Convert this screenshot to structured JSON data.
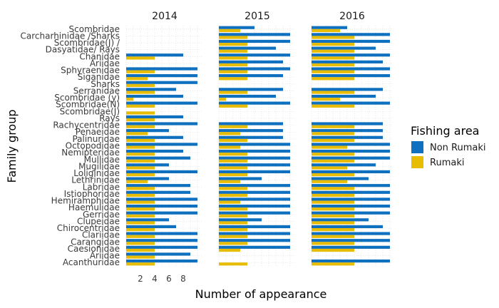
{
  "chart_data": {
    "type": "bar",
    "orientation": "horizontal",
    "facets": [
      "2014",
      "2015",
      "2016"
    ],
    "xlabel": "Number of appearance",
    "ylabel": "Family group",
    "x_ticks": [
      2,
      4,
      6,
      8
    ],
    "xlim": [
      0,
      10
    ],
    "legend_title": "Fishing area",
    "legend_position": "right",
    "grid": true,
    "series": [
      {
        "name": "Non Rumaki",
        "color": "#1070C0"
      },
      {
        "name": "Rumaki",
        "color": "#E8BC00"
      }
    ],
    "categories": [
      "Scombridae",
      "Carcharhinidae /Sharks",
      "Scombridae(J) /",
      "Dasyatidae/ Rays",
      "Chanidae",
      "Ariidae",
      "Sphyraenidae",
      "Siganidae",
      "Sharks",
      "Serranidae",
      "Scombridae (y)",
      "Scombridae(N)",
      "Scombridae(J)",
      "Rays",
      "Rachycentridae",
      "Penaeidae",
      "Palinuridae",
      "Octopodidae",
      "Nemipteridae",
      "Mullidae",
      "Mugilidae",
      "Loliginidae",
      "Lethrinidae",
      "Labridae",
      "Istiophoridae",
      "Hemiramphidae",
      "Haemulidae",
      "Gerridae",
      "Clupeidae",
      "Chirocentridae",
      "Clariidae",
      "Carangidae",
      "Caesionidae",
      "Ariidae",
      "Acanthuridae"
    ],
    "data": {
      "2014": {
        "Non Rumaki": [
          0,
          0,
          0,
          0,
          8,
          0,
          10,
          10,
          10,
          7,
          8,
          10,
          0,
          8,
          10,
          6,
          8,
          10,
          8,
          9,
          6,
          10,
          6,
          9,
          9,
          10,
          10,
          10,
          6,
          7,
          10,
          10,
          10,
          9,
          10
        ],
        "Rumaki": [
          0,
          0,
          0,
          0,
          4,
          0,
          4,
          3,
          4,
          4,
          1,
          4,
          4,
          4,
          4,
          3,
          4,
          4,
          4,
          4,
          4,
          4,
          3,
          4,
          4,
          4,
          4,
          4,
          4,
          4,
          4,
          4,
          4,
          4,
          4
        ]
      },
      "2015": {
        "Non Rumaki": [
          5,
          10,
          10,
          8,
          10,
          9,
          10,
          9,
          0,
          9,
          8,
          10,
          0,
          0,
          9,
          9,
          9,
          10,
          10,
          10,
          10,
          10,
          6,
          10,
          10,
          10,
          10,
          10,
          6,
          10,
          10,
          10,
          10,
          0,
          0
        ],
        "Rumaki": [
          3,
          4,
          4,
          4,
          4,
          4,
          4,
          4,
          0,
          4,
          1,
          4,
          0,
          0,
          4,
          3,
          4,
          3,
          4,
          4,
          4,
          4,
          3,
          4,
          4,
          3,
          4,
          4,
          4,
          4,
          4,
          4,
          3,
          0,
          4
        ]
      },
      "2016": {
        "Non Rumaki": [
          5,
          11,
          11,
          9,
          11,
          10,
          11,
          11,
          0,
          10,
          9,
          11,
          0,
          0,
          10,
          10,
          10,
          11,
          11,
          11,
          9,
          11,
          8,
          11,
          11,
          11,
          11,
          11,
          8,
          10,
          11,
          11,
          11,
          0,
          11
        ],
        "Rumaki": [
          4,
          6,
          6,
          6,
          6,
          6,
          6,
          6,
          0,
          6,
          4,
          6,
          0,
          0,
          6,
          6,
          6,
          5,
          6,
          6,
          5,
          6,
          5,
          6,
          6,
          6,
          6,
          6,
          6,
          6,
          6,
          6,
          6,
          0,
          6
        ]
      }
    }
  }
}
